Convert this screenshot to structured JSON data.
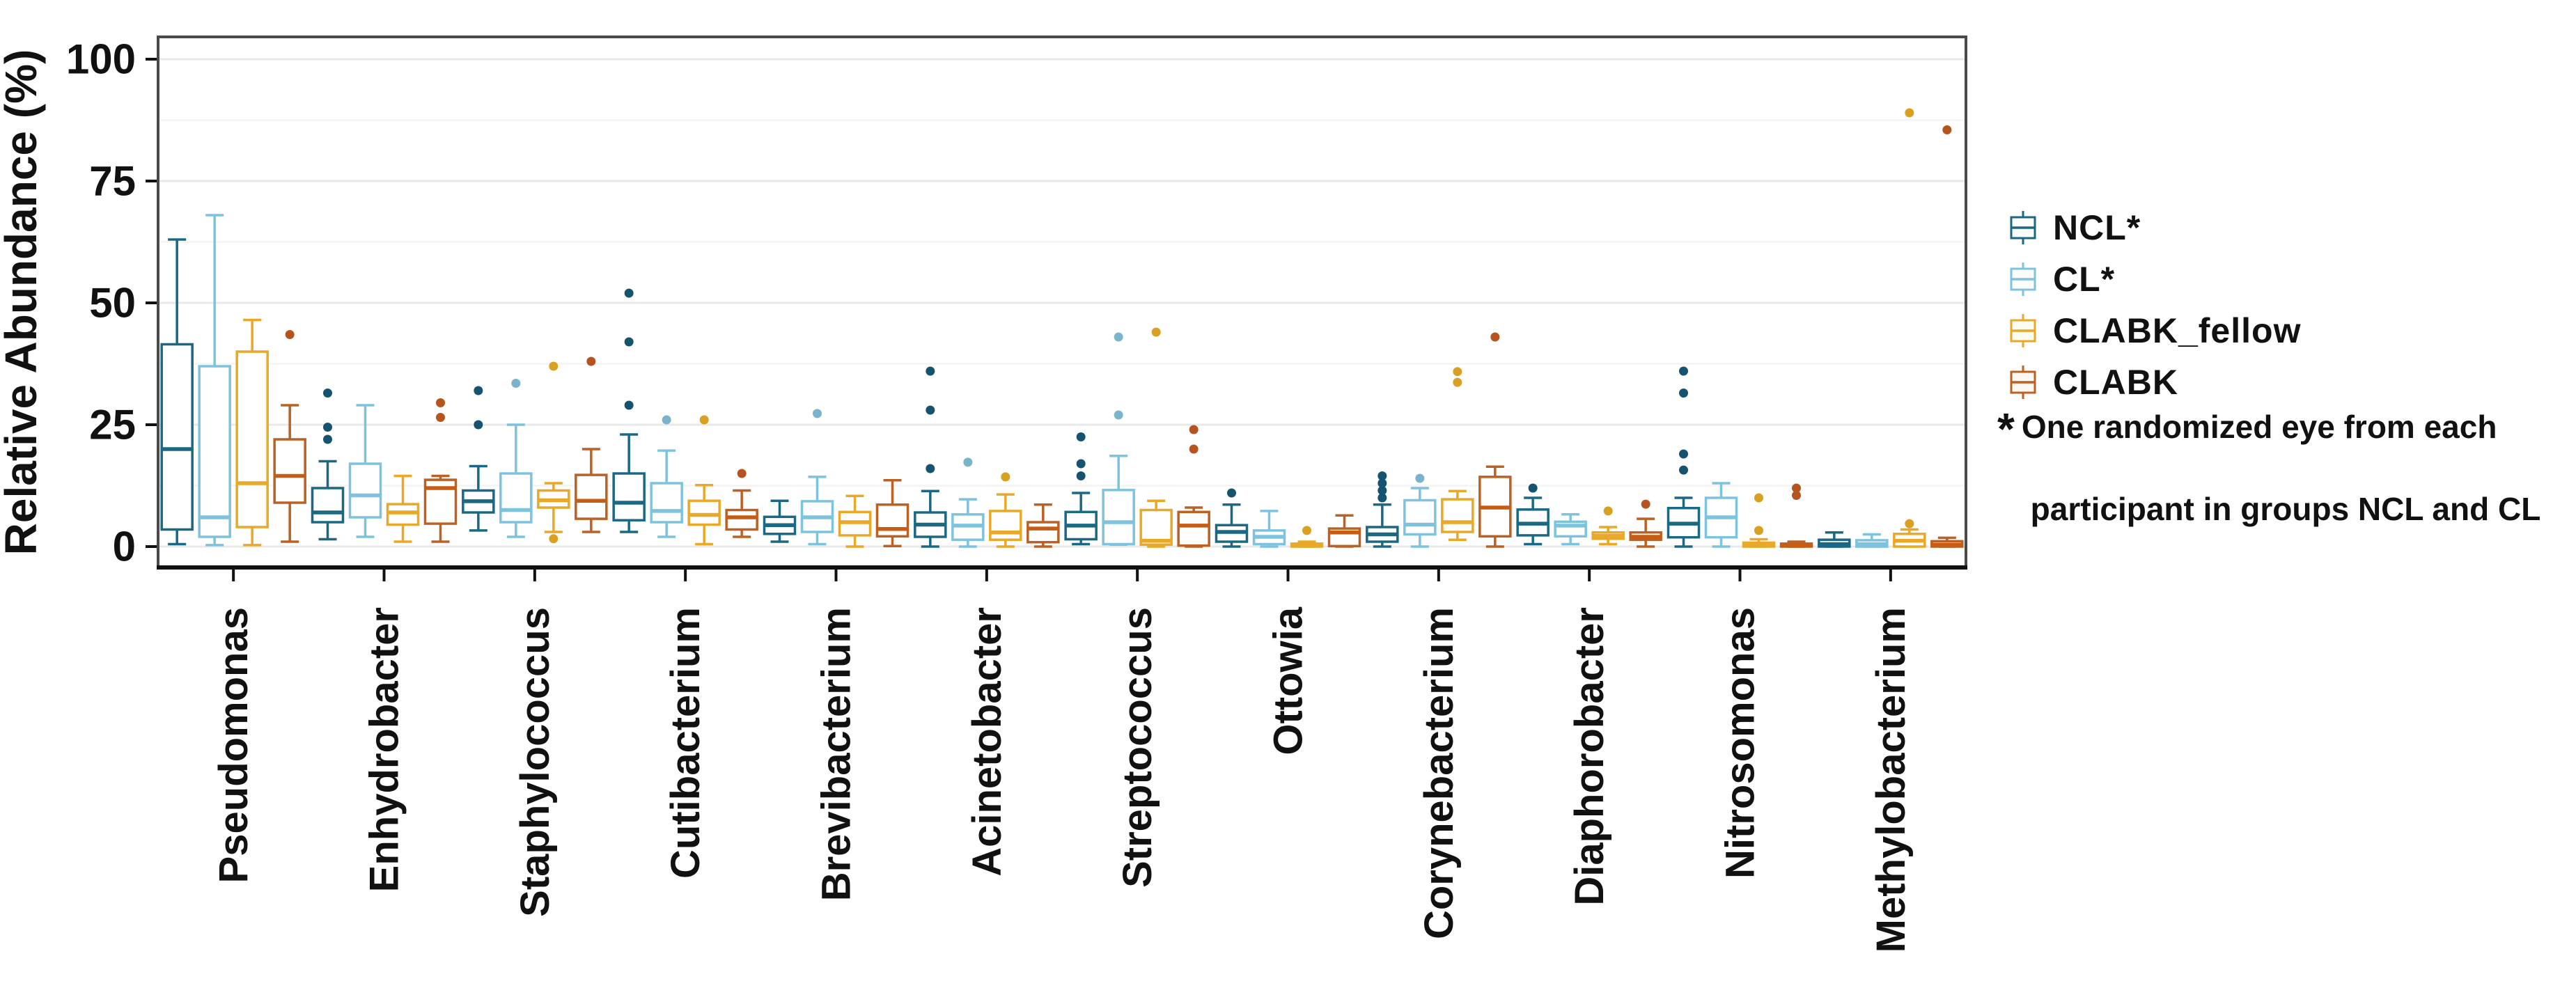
{
  "figure": {
    "background": "#ffffff",
    "panel_border_color": "#4a4a4a",
    "axis_line_color": "#111111",
    "major_grid_color": "#e9e9e9",
    "minor_grid_color": "#f4f4f4",
    "text_color": "#111111"
  },
  "legend": {
    "footnote_mark": "*",
    "footnote_line1": "One randomized eye from each",
    "footnote_line2": " participant in groups NCL and CL"
  },
  "chart_data": {
    "type": "boxplot",
    "title": "",
    "xlabel": "",
    "ylabel": "Relative Abundance (%)",
    "yticks": [
      0,
      25,
      50,
      75,
      100
    ],
    "minor_gridlines": [
      12.5,
      37.5,
      62.5,
      87.5
    ],
    "ylim": [
      0,
      104
    ],
    "legend_position": "right",
    "grid": "on",
    "series": [
      {
        "name": "NCL*",
        "color": "#1a6884",
        "outlier_color": "#15536e"
      },
      {
        "name": "CL*",
        "color": "#7ec3dd",
        "outlier_color": "#79b4cc"
      },
      {
        "name": "CLABK_fellow",
        "color": "#e9a827",
        "outlier_color": "#d9a021"
      },
      {
        "name": "CLABK",
        "color": "#bb6124",
        "outlier_color": "#b5541e",
        "median_color": "#c85c12"
      }
    ],
    "categories": [
      "Pseudomonas",
      "Enhydrobacter",
      "Staphylococcus",
      "Cutibacterium",
      "Brevibacterium",
      "Acinetobacter",
      "Streptococcus",
      "Ottowia",
      "Corynebacterium",
      "Diaphorobacter",
      "Nitrosomonas",
      "Methylobacterium"
    ],
    "boxes": [
      {
        "genus": "Pseudomonas",
        "stats": [
          [
            0.5,
            3.5,
            20,
            41.5,
            63
          ],
          [
            0.3,
            2,
            6,
            37,
            68
          ],
          [
            0.3,
            4,
            13,
            40,
            46.5
          ],
          [
            1,
            9,
            14.5,
            22,
            29
          ]
        ],
        "outliers": [
          [],
          [],
          [],
          [
            43.5
          ]
        ]
      },
      {
        "genus": "Enhydrobacter",
        "stats": [
          [
            1.5,
            5,
            7,
            12,
            17.5
          ],
          [
            2,
            6,
            10.5,
            17,
            29
          ],
          [
            1,
            4.5,
            7,
            8.7,
            14.5
          ],
          [
            1,
            4.7,
            12,
            13.7,
            14.5
          ]
        ],
        "outliers": [
          [
            22,
            24.5,
            31.5
          ],
          [],
          [],
          [
            26.5,
            29.5
          ]
        ]
      },
      {
        "genus": "Staphylococcus",
        "stats": [
          [
            3.3,
            7,
            9.3,
            11.5,
            16.5
          ],
          [
            2,
            5,
            7.5,
            15,
            25
          ],
          [
            3,
            8,
            9.5,
            11.5,
            13
          ],
          [
            3,
            5.7,
            9.4,
            14.7,
            20
          ]
        ],
        "outliers": [
          [
            25,
            32
          ],
          [
            33.5
          ],
          [
            1.6,
            37
          ],
          [
            38
          ]
        ]
      },
      {
        "genus": "Cutibacterium",
        "stats": [
          [
            3,
            5.4,
            9,
            15,
            23
          ],
          [
            2,
            5,
            7.3,
            13,
            19.7
          ],
          [
            0.5,
            4.5,
            6.5,
            9.4,
            12.6
          ],
          [
            2,
            3.5,
            6,
            7.5,
            11.5
          ]
        ],
        "outliers": [
          [
            29,
            42,
            52
          ],
          [
            26
          ],
          [
            26
          ],
          [
            15
          ]
        ]
      },
      {
        "genus": "Brevibacterium",
        "stats": [
          [
            1,
            2.6,
            4.4,
            6.1,
            9.4
          ],
          [
            0.5,
            3,
            6,
            9.3,
            14.3
          ],
          [
            0,
            2.3,
            5,
            7.1,
            10.4
          ],
          [
            0.1,
            2.1,
            3.6,
            8.6,
            13.6
          ]
        ],
        "outliers": [
          [],
          [
            27.3
          ],
          [],
          []
        ]
      },
      {
        "genus": "Acinetobacter",
        "stats": [
          [
            0,
            2,
            4.5,
            7,
            11.4
          ],
          [
            0,
            1.4,
            4.3,
            6.6,
            9.7
          ],
          [
            0,
            1.4,
            2.9,
            7.3,
            10.7
          ],
          [
            0,
            0.9,
            3.7,
            5,
            8.6
          ]
        ],
        "outliers": [
          [
            16,
            28,
            36
          ],
          [
            17.3
          ],
          [
            14.3
          ],
          []
        ]
      },
      {
        "genus": "Streptococcus",
        "stats": [
          [
            0.5,
            1.5,
            4.3,
            7.1,
            11
          ],
          [
            0.4,
            0.5,
            5,
            11.6,
            18.6
          ],
          [
            0,
            0.4,
            1.2,
            7.5,
            9.4
          ],
          [
            0,
            0.2,
            4.3,
            7.1,
            8
          ]
        ],
        "outliers": [
          [
            14.5,
            17,
            22.5
          ],
          [
            27,
            43
          ],
          [
            44
          ],
          [
            20,
            24
          ]
        ]
      },
      {
        "genus": "Ottowia",
        "stats": [
          [
            0,
            1,
            3,
            4.4,
            8.6
          ],
          [
            0,
            0.5,
            2,
            3.3,
            7.3
          ],
          [
            0,
            0,
            0.2,
            0.6,
            1
          ],
          [
            0,
            0.1,
            2.9,
            3.7,
            6.4
          ]
        ],
        "outliers": [
          [
            11
          ],
          [],
          [
            3.3
          ],
          []
        ]
      },
      {
        "genus": "Corynebacterium",
        "stats": [
          [
            0,
            1,
            2.5,
            4,
            8.6
          ],
          [
            0,
            2.5,
            4.5,
            9.5,
            12
          ],
          [
            1.4,
            3,
            5,
            9.7,
            11.4
          ],
          [
            0,
            2.1,
            8,
            14.3,
            16.4
          ]
        ],
        "outliers": [
          [
            10,
            11.5,
            13,
            14.5
          ],
          [
            14
          ],
          [
            33.7,
            35.9
          ],
          [
            43
          ]
        ]
      },
      {
        "genus": "Diaphorobacter",
        "stats": [
          [
            0.5,
            2.3,
            4.7,
            7.6,
            10
          ],
          [
            0.5,
            2.1,
            4.3,
            5.1,
            6.6
          ],
          [
            0.5,
            1.6,
            2.2,
            2.9,
            4
          ],
          [
            0,
            1.4,
            2,
            2.9,
            5.7
          ]
        ],
        "outliers": [
          [
            12
          ],
          [],
          [
            7.3
          ],
          [
            8.7
          ]
        ]
      },
      {
        "genus": "Nitrosomonas",
        "stats": [
          [
            0,
            1.9,
            4.7,
            7.9,
            10
          ],
          [
            0,
            1.9,
            6,
            10,
            13
          ],
          [
            0,
            0,
            0.3,
            0.8,
            1.5
          ],
          [
            0,
            0,
            0.2,
            0.6,
            1
          ]
        ],
        "outliers": [
          [
            15.7,
            19,
            31.5,
            36
          ],
          [],
          [
            3.3,
            10
          ],
          [
            10.5,
            12
          ]
        ]
      },
      {
        "genus": "Methylobacterium",
        "stats": [
          [
            0,
            0,
            0.5,
            1.4,
            2.9
          ],
          [
            0,
            0,
            0.5,
            1.3,
            2.5
          ],
          [
            0,
            0,
            1.2,
            2.6,
            3.5
          ],
          [
            0,
            0,
            0.4,
            1.1,
            1.8
          ]
        ],
        "outliers": [
          [],
          [],
          [
            4.7,
            89
          ],
          [
            85.5
          ]
        ]
      }
    ]
  }
}
